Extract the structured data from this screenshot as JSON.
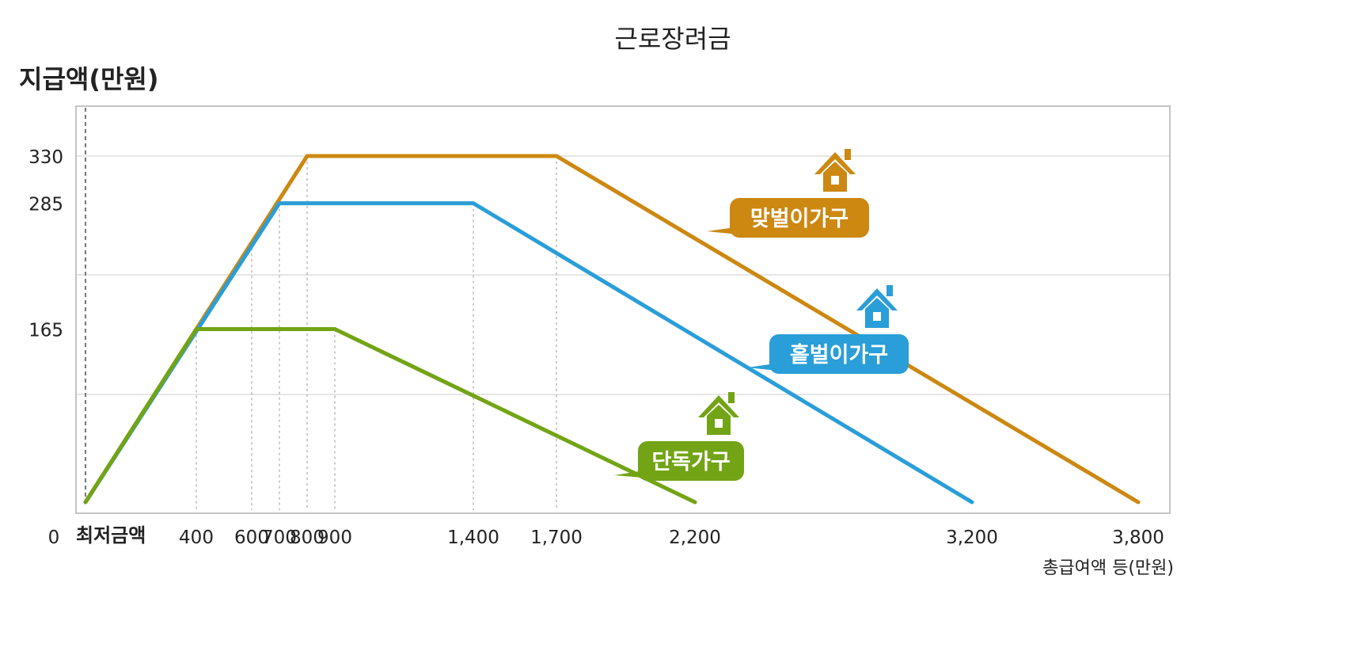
{
  "title": "근로장려금",
  "chart_data": {
    "type": "line",
    "title": "근로장려금",
    "ylabel": "지급액(만원)",
    "xlabel": "총급여액 등(만원)",
    "x_min_label": "최저금액",
    "x_ticks": [
      {
        "value": 0,
        "label": "0"
      },
      {
        "value": 400,
        "label": "400"
      },
      {
        "value": 600,
        "label": "600"
      },
      {
        "value": 700,
        "label": "700"
      },
      {
        "value": 800,
        "label": "800"
      },
      {
        "value": 900,
        "label": "900"
      },
      {
        "value": 1400,
        "label": "1,400"
      },
      {
        "value": 1700,
        "label": "1,700"
      },
      {
        "value": 2200,
        "label": "2,200"
      },
      {
        "value": 3200,
        "label": "3,200"
      },
      {
        "value": 3800,
        "label": "3,800"
      }
    ],
    "y_ticks": [
      {
        "value": 165,
        "label": "165"
      },
      {
        "value": 285,
        "label": "285"
      },
      {
        "value": 330,
        "label": "330"
      }
    ],
    "ylim": [
      0,
      330
    ],
    "grid": true,
    "series": [
      {
        "name": "맞벌이가구",
        "color": "#cc8811",
        "points": [
          [
            0,
            0
          ],
          [
            800,
            330
          ],
          [
            1700,
            330
          ],
          [
            3800,
            0
          ]
        ]
      },
      {
        "name": "홑벌이가구",
        "color": "#2a9ed8",
        "points": [
          [
            0,
            0
          ],
          [
            700,
            285
          ],
          [
            1400,
            285
          ],
          [
            3200,
            0
          ]
        ]
      },
      {
        "name": "단독가구",
        "color": "#72a415",
        "points": [
          [
            0,
            0
          ],
          [
            400,
            165
          ],
          [
            900,
            165
          ],
          [
            2200,
            0
          ]
        ]
      }
    ]
  }
}
